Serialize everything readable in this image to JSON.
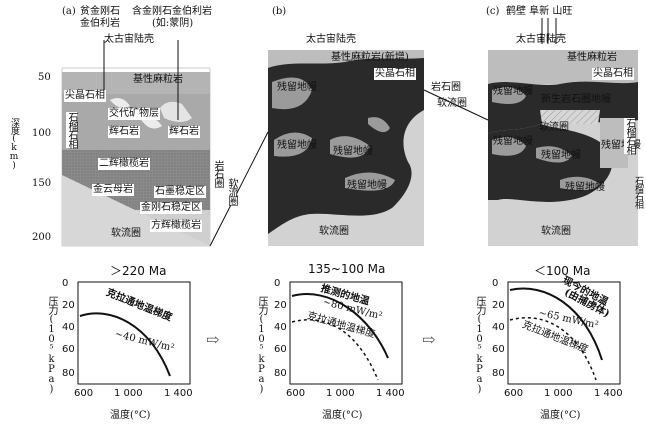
{
  "panels": [
    {
      "tag": "(a)",
      "top_labels": [
        "贫金刚石",
        "金伯利岩",
        "含金刚石金伯利岩",
        "(如:蒙阴)"
      ],
      "craton": "太古宙陆壳",
      "labels": {
        "basement": "基性麻粒岩",
        "spinel": "尖晶石相",
        "metasomatic": "交代矿物层",
        "pyroxenite1": "辉石岩",
        "pyroxenite2": "辉石岩",
        "harzburgite": "二辉橄榄岩",
        "garnet_facies": "石榴石相",
        "phlogopite": "金云母岩",
        "graphite_zone": "石墨稳定区",
        "diamond_zone": "金刚石稳定区",
        "dunite": "方辉橄榄岩",
        "asthenosphere": "软流圈"
      },
      "age": "＞220 Ma",
      "pt_labels": [
        "克拉通地温梯度",
        "~40 mW/m²"
      ]
    },
    {
      "tag": "(b)",
      "craton": "太古宙陆壳",
      "labels": {
        "basement": "基性麻粒岩(新增)",
        "spinel": "尖晶石相",
        "residual1": "残留地幔",
        "residual2": "残留地幔",
        "residual3": "残留地幔",
        "residual4": "残留地幔",
        "asthenosphere": "软流圈"
      },
      "age": "135~100 Ma",
      "pt_labels": [
        "推测的地温",
        "~80 mW/m²",
        "克拉通地温梯度"
      ]
    },
    {
      "tag": "(c)",
      "top_labels": [
        "鹤壁 阜新 山旺"
      ],
      "craton": "太古宙陆壳",
      "labels": {
        "basement": "基性麻粒岩",
        "spinel": "尖晶石相",
        "residual1": "残留地幔",
        "new_litho": "新生岩石圈地幔",
        "asthenosphere": "软流圈",
        "residual2": "残留地幔",
        "residual3": "残留地幔",
        "residual4": "残留地幔",
        "residual5": "残留地幔",
        "garnet": "石榴石相",
        "asthenosphere2": "软流圈"
      },
      "age": "＜100 Ma",
      "pt_labels": [
        "现今的地温",
        "(由捕虏体)",
        "~65 mW/m²",
        "克拉通地温梯度"
      ]
    }
  ],
  "interface_labels": [
    "岩石圈",
    "软流圈"
  ],
  "depth_axis": {
    "title": "深度(km)",
    "ticks": [
      "50",
      "100",
      "150",
      "200"
    ]
  },
  "garnet_side": "石榴石相",
  "pt_axes": {
    "ylabel": "压力(10⁵kPa)",
    "xlabel": "温度(°C)",
    "yticks": [
      "0",
      "20",
      "40",
      "60",
      "80"
    ],
    "xticks": [
      "600",
      "1 000",
      "1 400"
    ]
  },
  "arrow_glyph": "⇨"
}
